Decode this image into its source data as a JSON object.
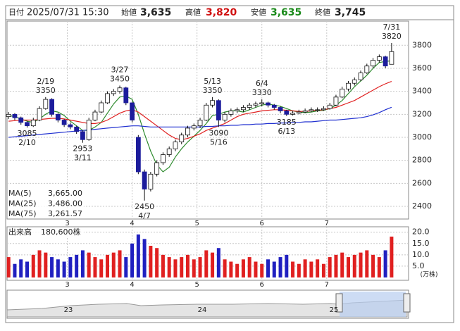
{
  "header": {
    "date_label": "日付",
    "datetime": "2025/07/31 15:30",
    "open_label": "始値",
    "open": "3,635",
    "high_label": "高値",
    "high": "3,820",
    "low_label": "安値",
    "low": "3,635",
    "close_label": "終値",
    "close": "3,745"
  },
  "chart_data": [
    {
      "type": "candlestick",
      "x": [
        0,
        2,
        4,
        6,
        8,
        10,
        12,
        14,
        16,
        18,
        20,
        22,
        24,
        26,
        28,
        30,
        32,
        34,
        36,
        38,
        40,
        42,
        44,
        46,
        48,
        50,
        52,
        54,
        56,
        58,
        60,
        62,
        64,
        66,
        68,
        70,
        72,
        74,
        76,
        78,
        80,
        82,
        84,
        86,
        88,
        90,
        92,
        94,
        96,
        98,
        100,
        102,
        104,
        106,
        108,
        110,
        112,
        114,
        116,
        118,
        120,
        122,
        124
      ],
      "ohlc": [
        [
          3180,
          3220,
          3160,
          3200
        ],
        [
          3200,
          3210,
          3150,
          3170
        ],
        [
          3170,
          3180,
          3110,
          3130
        ],
        [
          3130,
          3140,
          3085,
          3100
        ],
        [
          3100,
          3170,
          3090,
          3150
        ],
        [
          3150,
          3270,
          3140,
          3250
        ],
        [
          3250,
          3350,
          3240,
          3330
        ],
        [
          3330,
          3340,
          3180,
          3200
        ],
        [
          3200,
          3210,
          3130,
          3150
        ],
        [
          3150,
          3160,
          3090,
          3110
        ],
        [
          3110,
          3130,
          3070,
          3090
        ],
        [
          3090,
          3100,
          3030,
          3050
        ],
        [
          3050,
          3060,
          2953,
          2980
        ],
        [
          2980,
          3170,
          2970,
          3150
        ],
        [
          3150,
          3240,
          3140,
          3220
        ],
        [
          3220,
          3320,
          3210,
          3300
        ],
        [
          3300,
          3400,
          3290,
          3380
        ],
        [
          3380,
          3420,
          3360,
          3400
        ],
        [
          3400,
          3450,
          3380,
          3430
        ],
        [
          3430,
          3440,
          3280,
          3300
        ],
        [
          3300,
          3310,
          3130,
          3150
        ],
        [
          3000,
          3020,
          2680,
          2700
        ],
        [
          2700,
          2720,
          2450,
          2550
        ],
        [
          2550,
          2700,
          2530,
          2680
        ],
        [
          2680,
          2800,
          2660,
          2780
        ],
        [
          2780,
          2870,
          2760,
          2850
        ],
        [
          2850,
          2920,
          2830,
          2900
        ],
        [
          2900,
          2980,
          2880,
          2960
        ],
        [
          2960,
          3040,
          2940,
          3020
        ],
        [
          3020,
          3100,
          3000,
          3080
        ],
        [
          3080,
          3120,
          3060,
          3100
        ],
        [
          3100,
          3170,
          3080,
          3150
        ],
        [
          3150,
          3300,
          3140,
          3280
        ],
        [
          3280,
          3350,
          3260,
          3320
        ],
        [
          3320,
          3330,
          3090,
          3150
        ],
        [
          3150,
          3220,
          3130,
          3200
        ],
        [
          3200,
          3250,
          3180,
          3230
        ],
        [
          3230,
          3260,
          3210,
          3240
        ],
        [
          3240,
          3280,
          3220,
          3260
        ],
        [
          3260,
          3300,
          3240,
          3280
        ],
        [
          3280,
          3310,
          3260,
          3290
        ],
        [
          3290,
          3330,
          3270,
          3300
        ],
        [
          3300,
          3310,
          3260,
          3280
        ],
        [
          3280,
          3290,
          3240,
          3260
        ],
        [
          3260,
          3270,
          3210,
          3230
        ],
        [
          3230,
          3240,
          3185,
          3200
        ],
        [
          3200,
          3230,
          3190,
          3210
        ],
        [
          3210,
          3240,
          3200,
          3220
        ],
        [
          3220,
          3250,
          3210,
          3230
        ],
        [
          3230,
          3260,
          3220,
          3240
        ],
        [
          3240,
          3260,
          3220,
          3240
        ],
        [
          3240,
          3270,
          3230,
          3250
        ],
        [
          3250,
          3300,
          3240,
          3280
        ],
        [
          3280,
          3370,
          3270,
          3350
        ],
        [
          3350,
          3440,
          3340,
          3420
        ],
        [
          3420,
          3490,
          3400,
          3470
        ],
        [
          3470,
          3520,
          3450,
          3500
        ],
        [
          3500,
          3580,
          3490,
          3560
        ],
        [
          3560,
          3640,
          3550,
          3620
        ],
        [
          3620,
          3690,
          3600,
          3670
        ],
        [
          3670,
          3720,
          3650,
          3700
        ],
        [
          3700,
          3710,
          3600,
          3620
        ],
        [
          3635,
          3820,
          3635,
          3745
        ]
      ],
      "up_color": "#ffffff",
      "down_color": "#1c1c9c",
      "xlim": [
        -0.5,
        129.5
      ],
      "ylim": [
        2290,
        4010
      ],
      "yticks": [
        2400,
        2600,
        2800,
        3000,
        3200,
        3400,
        3600,
        3800
      ],
      "xticks": [
        {
          "value": 19,
          "label": "3"
        },
        {
          "value": 40,
          "label": "4"
        },
        {
          "value": 61,
          "label": "5"
        },
        {
          "value": 82,
          "label": "6"
        },
        {
          "value": 103,
          "label": "7"
        }
      ],
      "grid": true,
      "series": [
        {
          "name": "MA(5)",
          "color": "#2e8b2e",
          "last_label": "3,665.00",
          "values": [
            3190,
            3180,
            3160,
            3140,
            3130,
            3160,
            3200,
            3230,
            3220,
            3190,
            3140,
            3100,
            3060,
            3060,
            3090,
            3130,
            3210,
            3290,
            3350,
            3360,
            3330,
            3200,
            3030,
            2880,
            2760,
            2700,
            2740,
            2830,
            2900,
            2960,
            3010,
            3060,
            3120,
            3190,
            3200,
            3220,
            3230,
            3230,
            3220,
            3240,
            3260,
            3280,
            3290,
            3280,
            3270,
            3250,
            3230,
            3220,
            3215,
            3220,
            3230,
            3235,
            3250,
            3280,
            3320,
            3380,
            3440,
            3490,
            3540,
            3600,
            3650,
            3660,
            3665
          ]
        },
        {
          "name": "MA(25)",
          "color": "#e02020",
          "last_label": "3,486.00",
          "values": [
            3140,
            3145,
            3150,
            3150,
            3150,
            3155,
            3160,
            3165,
            3165,
            3160,
            3150,
            3140,
            3130,
            3120,
            3120,
            3130,
            3150,
            3180,
            3210,
            3230,
            3240,
            3220,
            3180,
            3140,
            3100,
            3060,
            3020,
            2990,
            2980,
            2990,
            3010,
            3030,
            3060,
            3080,
            3100,
            3120,
            3150,
            3180,
            3200,
            3210,
            3220,
            3230,
            3235,
            3240,
            3240,
            3235,
            3230,
            3225,
            3225,
            3230,
            3235,
            3240,
            3250,
            3260,
            3280,
            3300,
            3320,
            3350,
            3380,
            3410,
            3440,
            3465,
            3486
          ]
        },
        {
          "name": "MA(75)",
          "color": "#2030d0",
          "last_label": "3,261.57",
          "values": [
            3000,
            3005,
            3010,
            3015,
            3020,
            3025,
            3030,
            3035,
            3040,
            3045,
            3050,
            3055,
            3060,
            3065,
            3070,
            3075,
            3080,
            3085,
            3090,
            3095,
            3100,
            3100,
            3095,
            3090,
            3090,
            3090,
            3090,
            3090,
            3090,
            3090,
            3090,
            3090,
            3095,
            3095,
            3100,
            3100,
            3105,
            3105,
            3110,
            3110,
            3115,
            3115,
            3120,
            3120,
            3125,
            3125,
            3130,
            3130,
            3135,
            3135,
            3140,
            3145,
            3150,
            3150,
            3155,
            3160,
            3165,
            3170,
            3180,
            3195,
            3215,
            3240,
            3261.57
          ]
        }
      ],
      "annotations": [
        {
          "x": 12,
          "value": 3350,
          "date": "2/19",
          "position": "above"
        },
        {
          "x": 6,
          "value": 3085,
          "date": "2/10",
          "position": "below"
        },
        {
          "x": 24,
          "value": 2953,
          "date": "3/11",
          "position": "below"
        },
        {
          "x": 36,
          "value": 3450,
          "date": "3/27",
          "position": "above"
        },
        {
          "x": 44,
          "value": 2450,
          "date": "4/7",
          "position": "below"
        },
        {
          "x": 66,
          "value": 3350,
          "date": "5/13",
          "position": "above"
        },
        {
          "x": 68,
          "value": 3090,
          "date": "5/16",
          "position": "below"
        },
        {
          "x": 82,
          "value": 3330,
          "date": "6/4",
          "position": "above"
        },
        {
          "x": 90,
          "value": 3185,
          "date": "6/13",
          "position": "below"
        },
        {
          "x": 124,
          "value": 3820,
          "date": "7/31",
          "position": "above"
        }
      ]
    },
    {
      "type": "bar",
      "title": "出来高",
      "subtitle": "180,600株",
      "unit_label": "(万株)",
      "x": [
        0,
        2,
        4,
        6,
        8,
        10,
        12,
        14,
        16,
        18,
        20,
        22,
        24,
        26,
        28,
        30,
        32,
        34,
        36,
        38,
        40,
        42,
        44,
        46,
        48,
        50,
        52,
        54,
        56,
        58,
        60,
        62,
        64,
        66,
        68,
        70,
        72,
        74,
        76,
        78,
        80,
        82,
        84,
        86,
        88,
        90,
        92,
        94,
        96,
        98,
        100,
        102,
        104,
        106,
        108,
        110,
        112,
        114,
        116,
        118,
        120,
        122,
        124
      ],
      "values": [
        9,
        6,
        8,
        7,
        10,
        12,
        11,
        9,
        8,
        7,
        9,
        10,
        12,
        11,
        9,
        8,
        10,
        11,
        12,
        9,
        15,
        19,
        17,
        14,
        13,
        10,
        9,
        8,
        9,
        10,
        8,
        9,
        12,
        11,
        13,
        8,
        7,
        6,
        8,
        9,
        7,
        6,
        8,
        7,
        9,
        10,
        7,
        6,
        8,
        7,
        8,
        6,
        9,
        10,
        11,
        9,
        10,
        11,
        12,
        10,
        9,
        12,
        18.06
      ],
      "up_color": "#e02020",
      "down_color": "#2020c0",
      "xlim": [
        -0.5,
        129.5
      ],
      "ylim": [
        0,
        22.4
      ],
      "yticks": [
        {
          "value": 5,
          "label": "5.0"
        },
        {
          "value": 10,
          "label": "10.0"
        },
        {
          "value": 15,
          "label": "15.0"
        },
        {
          "value": 20,
          "label": "20.0"
        }
      ],
      "xticks": [
        {
          "value": 19,
          "label": "3"
        },
        {
          "value": 40,
          "label": "4"
        },
        {
          "value": 61,
          "label": "5"
        },
        {
          "value": 82,
          "label": "6"
        },
        {
          "value": 103,
          "label": "7"
        }
      ]
    }
  ],
  "navigator": {
    "labels": [
      "23",
      "24",
      "25"
    ]
  }
}
